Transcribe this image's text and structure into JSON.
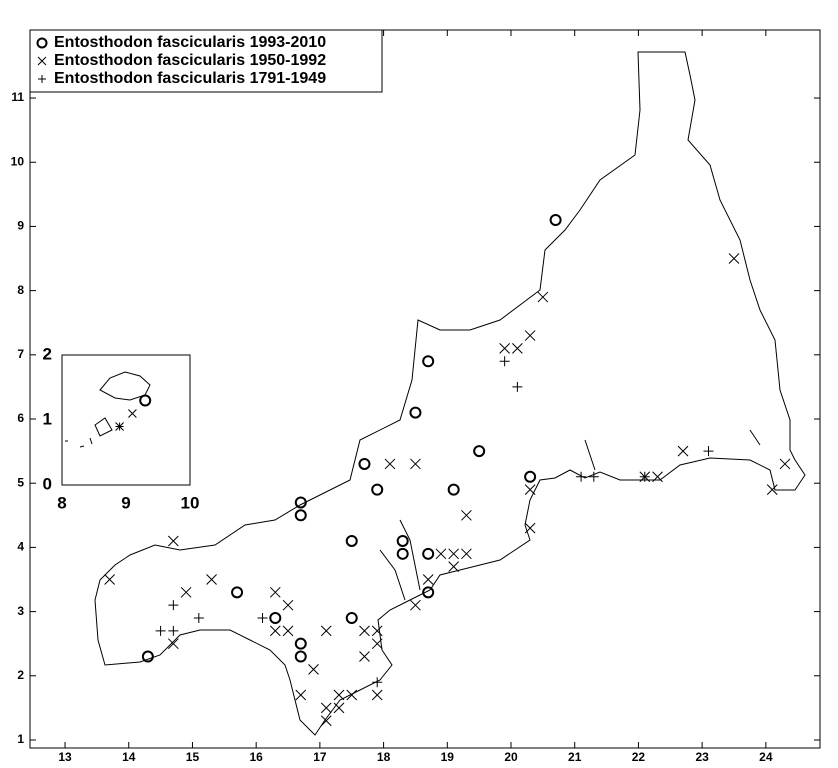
{
  "chart_data": [
    {
      "type": "scatter",
      "legend": "upper left",
      "color": "#000000",
      "xlim": [
        12.45,
        24.85
      ],
      "ylim": [
        0.875,
        12.06
      ],
      "xticks": [
        13,
        14,
        15,
        16,
        17,
        18,
        19,
        20,
        21,
        22,
        23,
        24
      ],
      "yticks": [
        1,
        2,
        3,
        4,
        5,
        6,
        7,
        8,
        9,
        10,
        11
      ],
      "series": [
        {
          "name": "Entosthodon fascicularis 1993-2010",
          "marker": "o",
          "color": "#000000",
          "x": [
            20.7,
            18.7,
            18.5,
            19.5,
            17.7,
            20.3,
            17.9,
            19.1,
            16.7,
            16.7,
            17.5,
            18.3,
            18.3,
            18.7,
            15.7,
            18.7,
            16.3,
            17.5,
            16.7,
            16.7,
            14.3
          ],
          "y": [
            9.1,
            6.9,
            6.1,
            5.5,
            5.3,
            5.1,
            4.9,
            4.9,
            4.7,
            4.5,
            4.1,
            4.1,
            3.9,
            3.9,
            3.3,
            3.3,
            2.9,
            2.9,
            2.5,
            2.3,
            2.3
          ]
        },
        {
          "name": "Entosthodon fascicularis 1950-1992",
          "marker": "x",
          "color": "#000000",
          "x": [
            20.5,
            20.3,
            19.9,
            20.1,
            23.5,
            18.1,
            18.5,
            22.7,
            22.3,
            22.1,
            24.1,
            24.3,
            20.3,
            19.3,
            20.3,
            14.7,
            13.7,
            15.3,
            14.9,
            16.3,
            16.5,
            18.9,
            19.1,
            19.3,
            19.1,
            18.5,
            18.7,
            16.3,
            16.5,
            17.1,
            17.7,
            17.9,
            17.9,
            14.7,
            16.9,
            17.7,
            16.7,
            17.3,
            17.5,
            17.9,
            17.1,
            17.3,
            17.1
          ],
          "y": [
            7.9,
            7.3,
            7.1,
            7.1,
            8.5,
            5.3,
            5.3,
            5.5,
            5.1,
            5.1,
            4.9,
            5.3,
            4.9,
            4.5,
            4.3,
            4.1,
            3.5,
            3.5,
            3.3,
            3.3,
            3.1,
            3.9,
            3.9,
            3.9,
            3.7,
            3.1,
            3.5,
            2.7,
            2.7,
            2.7,
            2.7,
            2.7,
            2.5,
            2.5,
            2.1,
            2.3,
            1.7,
            1.7,
            1.7,
            1.7,
            1.5,
            1.5,
            1.3
          ]
        },
        {
          "name": "Entosthodon fascicularis 1791-1949",
          "marker": "+",
          "color": "#000000",
          "x": [
            19.9,
            20.1,
            21.1,
            21.3,
            22.1,
            23.1,
            14.7,
            14.5,
            14.7,
            15.1,
            16.1,
            17.9
          ],
          "y": [
            6.9,
            6.5,
            5.1,
            5.1,
            5.1,
            5.5,
            3.1,
            2.7,
            2.7,
            2.9,
            2.9,
            1.9
          ]
        }
      ]
    },
    {
      "type": "scatter",
      "color": "#000000",
      "xlim": [
        8,
        10
      ],
      "ylim": [
        0,
        2
      ],
      "xticks": [
        8,
        9,
        10
      ],
      "yticks": [
        0,
        1,
        2
      ],
      "series": [
        {
          "marker": "o",
          "color": "#000000",
          "x": [
            9.3
          ],
          "y": [
            1.3
          ]
        },
        {
          "marker": "x",
          "color": "#000000",
          "x": [
            9.1,
            8.9
          ],
          "y": [
            1.1,
            0.9
          ]
        },
        {
          "marker": "+",
          "color": "#000000",
          "x": [
            8.9
          ],
          "y": [
            0.9
          ]
        }
      ]
    }
  ]
}
